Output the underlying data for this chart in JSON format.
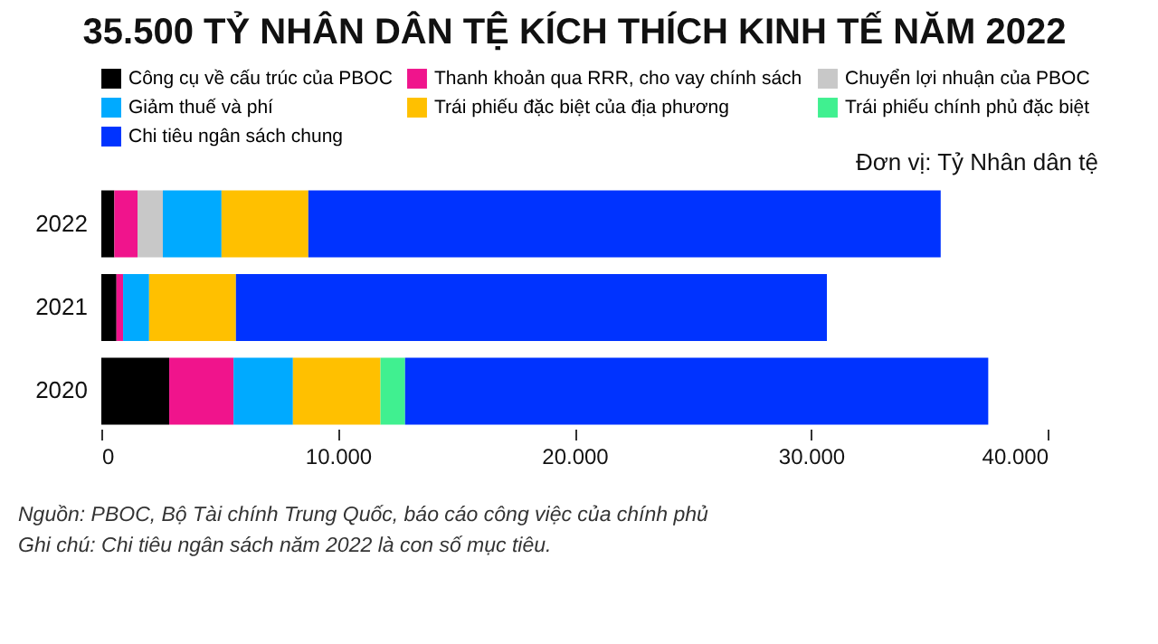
{
  "chart_data": {
    "type": "bar",
    "orientation": "horizontal",
    "stacked": true,
    "title": "35.500 TỶ NHÂN DÂN TỆ KÍCH THÍCH KINH TẾ NĂM 2022",
    "categories": [
      "2022",
      "2021",
      "2020"
    ],
    "series": [
      {
        "name": "Công cụ về cấu trúc của PBOC",
        "color": "#000000",
        "values": [
          550,
          640,
          2870
        ]
      },
      {
        "name": "Thanh khoản qua RRR, cho vay chính sách",
        "color": "#f0148c",
        "values": [
          980,
          280,
          2720
        ]
      },
      {
        "name": "Chuyển lợi nhuận của PBOC",
        "color": "#c8c8c8",
        "values": [
          1070,
          0,
          0
        ]
      },
      {
        "name": "Giảm thuế và phí",
        "color": "#00aaff",
        "values": [
          2480,
          1100,
          2510
        ]
      },
      {
        "name": "Trái phiếu đặc biệt của địa phương",
        "color": "#ffc000",
        "values": [
          3670,
          3670,
          3700
        ]
      },
      {
        "name": "Trái phiếu chính phủ đặc biệt",
        "color": "#40f090",
        "values": [
          0,
          0,
          1040
        ]
      },
      {
        "name": "Chi tiêu ngân sách chung",
        "color": "#0033ff",
        "values": [
          26730,
          24980,
          24650
        ]
      }
    ],
    "xlim": [
      0,
      40000
    ],
    "xticks": [
      0,
      {
        "value": 10000,
        "label": "10.000"
      },
      {
        "value": 20000,
        "label": "20.000"
      },
      {
        "value": 30000,
        "label": "30.000"
      },
      {
        "value": 40000,
        "label": "40.000"
      }
    ],
    "legend": "top",
    "annotations": [
      "Đơn vị: Tỷ Nhân dân tệ",
      "Nguồn: PBOC, Bộ Tài chính Trung Quốc, báo cáo công việc của chính phủ",
      "Ghi chú: Chi tiêu ngân sách năm 2022 là con số mục tiêu."
    ]
  }
}
